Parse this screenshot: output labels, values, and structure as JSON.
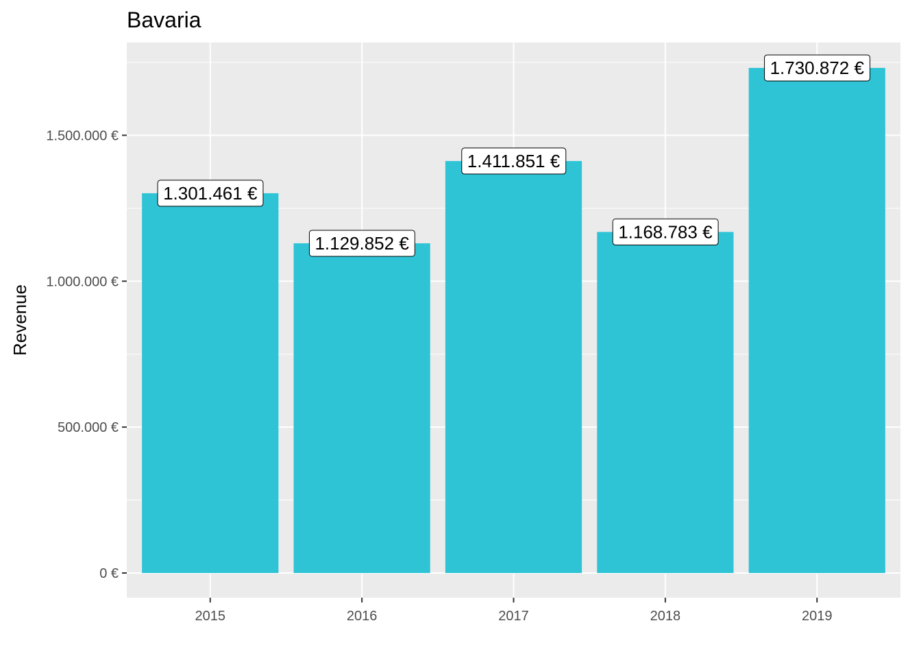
{
  "chart_data": {
    "type": "bar",
    "title": "Bavaria",
    "xlabel": "",
    "ylabel": "Revenue",
    "categories": [
      "2015",
      "2016",
      "2017",
      "2018",
      "2019"
    ],
    "values": [
      1301461,
      1129852,
      1411851,
      1168783,
      1730872
    ],
    "data_labels": [
      "1.301.461 €",
      "1.129.852 €",
      "1.411.851 €",
      "1.168.783 €",
      "1.730.872 €"
    ],
    "ylim": [
      0,
      1818000
    ],
    "y_ticks": [
      0,
      500000,
      1000000,
      1500000
    ],
    "y_tick_labels": [
      "0 €",
      "500.000 €",
      "1.000.000 €",
      "1.500.000 €"
    ],
    "grid": true,
    "legend": "none",
    "colors": {
      "bar": "#2ec4d6",
      "panel": "#ebebeb",
      "grid": "#ffffff",
      "label_fill": "#ffffff",
      "label_border": "#000000"
    }
  }
}
